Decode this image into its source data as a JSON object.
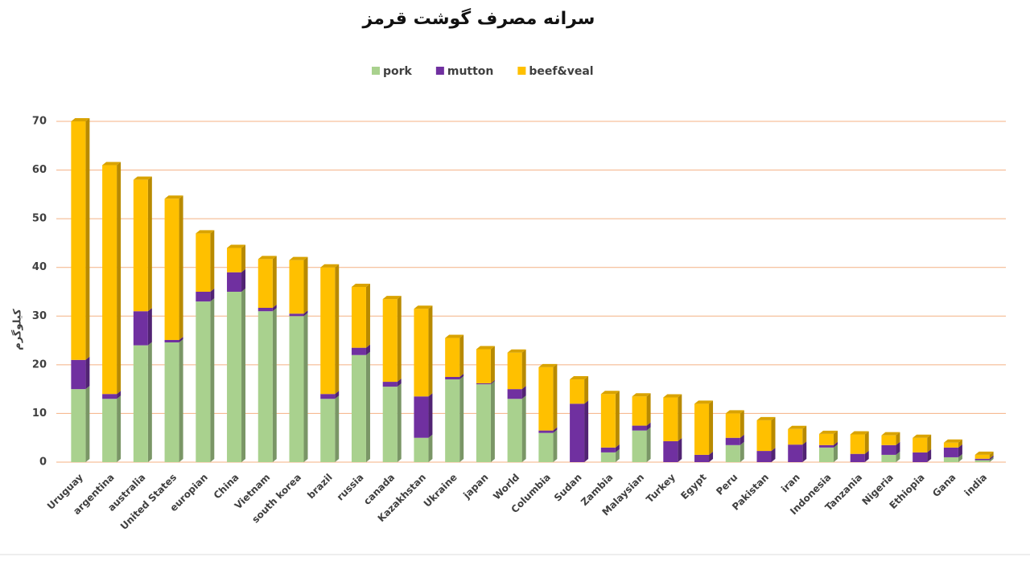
{
  "chart_data": {
    "type": "stacked_bar",
    "title": "سرانه مصرف گوشت قرمز",
    "y_label": "کیلوگرم",
    "categories": [
      "Uruguay",
      "argentina",
      "australia",
      "United States",
      "europian",
      "China",
      "Vietnam",
      "south korea",
      "brazil",
      "russia",
      "canada",
      "Kazakhstan",
      "Ukraine",
      "japan",
      "World",
      "Columbia",
      "Sudan",
      "Zambia",
      "Malaysian",
      "Turkey",
      "Egypt",
      "Peru",
      "Pakistan",
      "iran",
      "Indonesia",
      "Tanzania",
      "Nigeria",
      "Ethiopia",
      "Gana",
      "india"
    ],
    "series": [
      {
        "name": "pork",
        "color": "#a9d18e",
        "values": [
          15,
          13,
          24,
          24.6,
          33,
          35,
          31,
          30,
          13,
          22,
          15.5,
          5,
          17,
          16,
          13,
          6,
          0,
          2,
          6.5,
          0,
          0,
          3.5,
          0,
          0,
          3,
          0,
          1.5,
          0,
          1,
          0.4
        ]
      },
      {
        "name": "mutton",
        "color": "#7030a0",
        "values": [
          6,
          1,
          7,
          0.5,
          2,
          4,
          0.7,
          0.5,
          1,
          1.5,
          1,
          8.5,
          0.5,
          0.2,
          2,
          0.5,
          12,
          1,
          1,
          4.3,
          1.5,
          1.5,
          2.3,
          3.6,
          0.5,
          1.7,
          2,
          2,
          2,
          0.3
        ]
      },
      {
        "name": "beef&veal",
        "color": "#ffc000",
        "values": [
          49,
          47,
          27,
          29,
          12,
          5,
          10,
          11,
          26,
          12.5,
          17,
          18,
          8,
          7,
          7.5,
          13,
          5,
          11,
          6,
          9,
          10.5,
          5,
          6.3,
          3.2,
          2.3,
          4,
          2,
          3,
          1,
          0.8
        ]
      }
    ],
    "ylim": [
      0,
      70
    ],
    "yticks": [
      0,
      10,
      20,
      30,
      40,
      50,
      60,
      70
    ],
    "grid": true,
    "legend": "top"
  }
}
